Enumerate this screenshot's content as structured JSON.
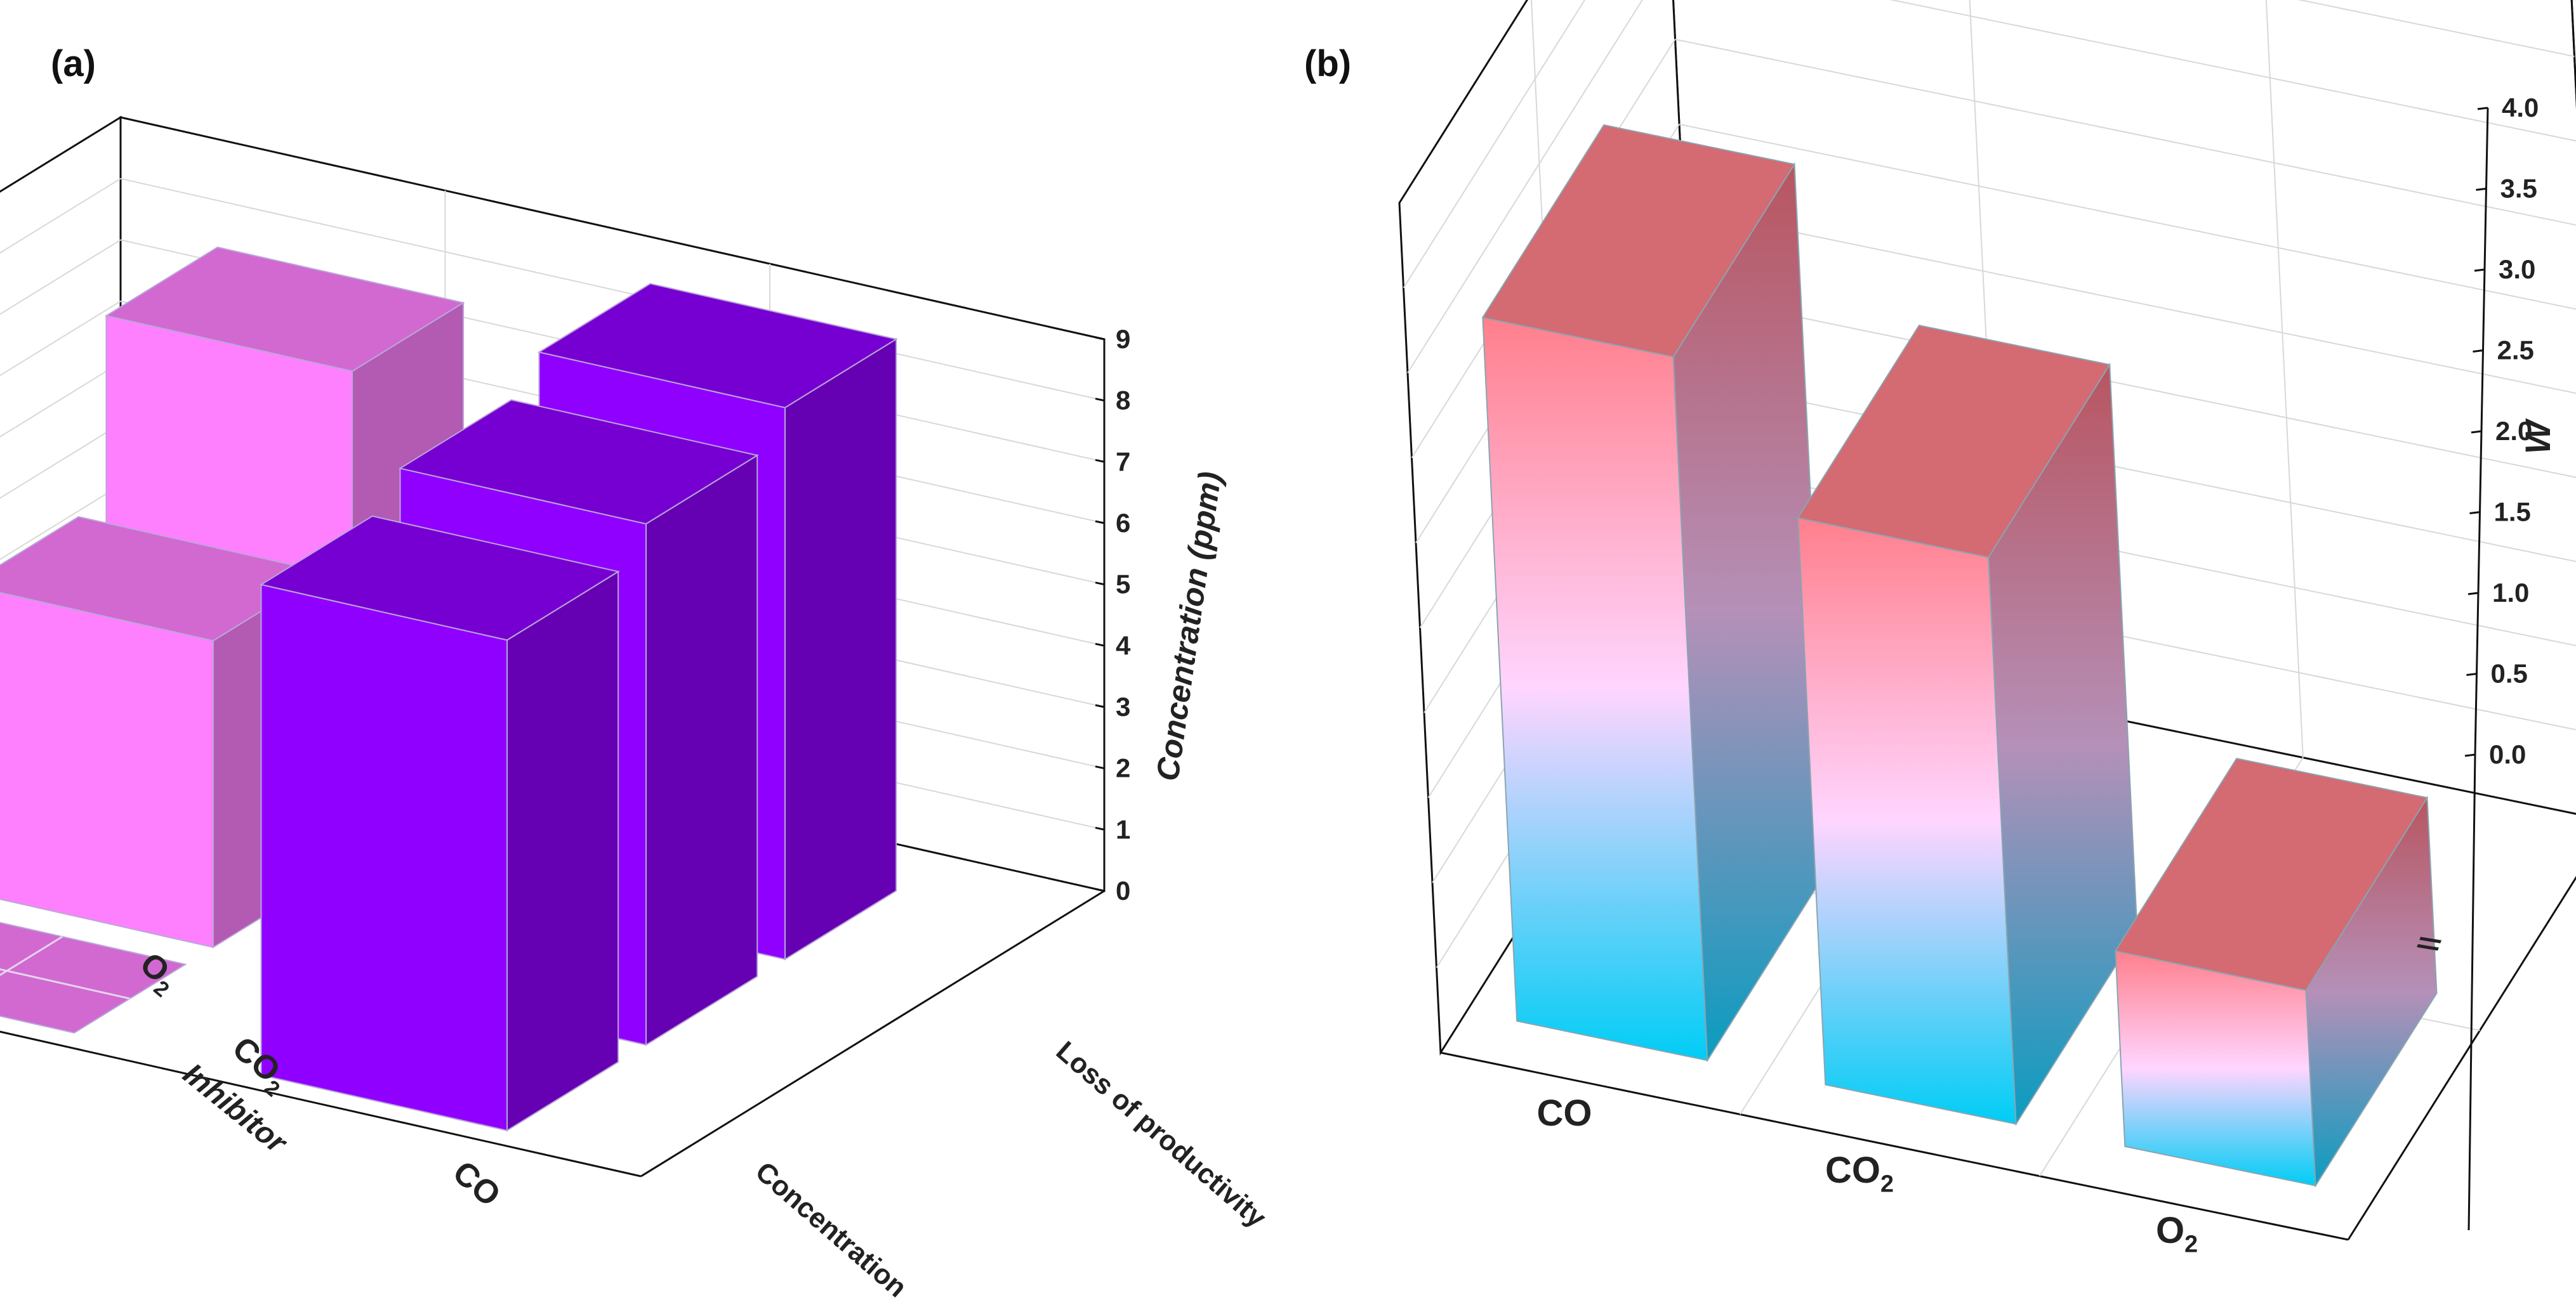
{
  "figure": {
    "panel_a_label": "(a)",
    "panel_b_label": "(b)"
  },
  "chart_data": [
    {
      "type": "bar",
      "subtype": "3d-bar",
      "panel": "(a)",
      "categories": [
        "O2",
        "CO2",
        "CO"
      ],
      "category_display": [
        [
          "O",
          "2"
        ],
        [
          "CO",
          "2"
        ],
        [
          "CO",
          ""
        ]
      ],
      "x_categories": [
        "Concentration",
        "Loss of productivity"
      ],
      "series": [
        {
          "name": "Concentration",
          "values": [
            8,
            5,
            0
          ],
          "color": "#ff80ff"
        },
        {
          "name": "Loss of productivity",
          "values": [
            9,
            8.5,
            8
          ],
          "color": "#9000ff"
        }
      ],
      "xlabel": "Inhibitor",
      "ylabel": "Concentration (ppm)",
      "zlim": [
        0,
        9
      ],
      "zticks": [
        "0",
        "1",
        "2",
        "3",
        "4",
        "5",
        "6",
        "7",
        "8",
        "9"
      ]
    },
    {
      "type": "bar",
      "subtype": "3d-bar",
      "panel": "(b)",
      "categories": [
        "CO",
        "CO2",
        "O2"
      ],
      "category_display": [
        [
          "CO",
          ""
        ],
        [
          "CO",
          "2"
        ],
        [
          "O",
          "2"
        ]
      ],
      "values": [
        3.6,
        2.9,
        1.0
      ],
      "ylabel": "W",
      "ylim": [
        0,
        4.0
      ],
      "yticks": [
        "0.0",
        "0.5",
        "1.0",
        "1.5",
        "2.0",
        "2.5",
        "3.0",
        "3.5",
        "4.0"
      ],
      "axis_break_label": "\\\\",
      "colormap": [
        "#00cdf5",
        "#ffd5ff",
        "#ff7f8c"
      ]
    }
  ]
}
